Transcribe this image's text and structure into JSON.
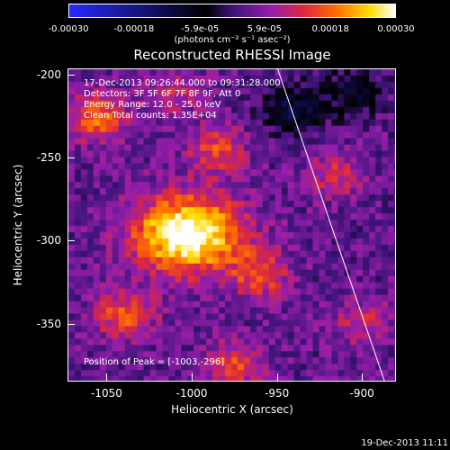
{
  "chart_data": {
    "type": "heatmap",
    "title": "Reconstructed RHESSI Image",
    "xlabel": "Heliocentric X (arcsec)",
    "ylabel": "Heliocentric Y (arcsec)",
    "xlim": [
      -1073,
      -880
    ],
    "ylim": [
      -385,
      -196
    ],
    "xticks": [
      "-1050",
      "-1000",
      "-950",
      "-900"
    ],
    "xtick_values": [
      -1050,
      -1000,
      -950,
      -900
    ],
    "yticks": [
      "-200",
      "-250",
      "-300",
      "-350"
    ],
    "ytick_values": [
      -200,
      -250,
      -300,
      -350
    ],
    "colorbar": {
      "ticks": [
        "-0.00030",
        "-0.00018",
        "-5.9e-05",
        "5.9e-05",
        "0.00018",
        "0.00030"
      ],
      "tick_values": [
        -0.0003,
        -0.00018,
        -5.9e-05,
        5.9e-05,
        0.00018,
        0.0003
      ],
      "units": "(photons cm⁻² s⁻¹ asec⁻²)",
      "range": [
        -0.0003,
        0.0003
      ]
    },
    "annotations": {
      "time_range": "17-Dec-2013 09:26:44.000 to 09:31:28.000",
      "detectors": "Detectors: 3F 5F 6F 7F 8F 9F, Att 0",
      "energy": "Energy Range: 12.0 - 25.0 keV",
      "clean": "Clean     Total counts: 1.35E+04",
      "peak": "Position of Peak = [-1003,-296]"
    },
    "peak_position": [
      -1003,
      -296
    ],
    "sources": [
      {
        "x": -1003,
        "y": -296,
        "value": 0.0003
      },
      {
        "x": -1055,
        "y": -225,
        "value": 0.00016
      },
      {
        "x": -985,
        "y": -245,
        "value": 0.00012
      },
      {
        "x": -1040,
        "y": -345,
        "value": 0.00014
      },
      {
        "x": -960,
        "y": -320,
        "value": 0.00013
      },
      {
        "x": -975,
        "y": -375,
        "value": 0.00012
      },
      {
        "x": -1010,
        "y": -210,
        "value": 8e-05
      },
      {
        "x": -915,
        "y": -260,
        "value": 9e-05
      },
      {
        "x": -900,
        "y": -350,
        "value": 8e-05
      },
      {
        "x": -940,
        "y": -220,
        "value": -0.00014
      },
      {
        "x": -905,
        "y": -210,
        "value": -0.0001
      }
    ],
    "limb_line": {
      "x": [
        -950,
        -887
      ],
      "y": [
        -196,
        -385
      ]
    }
  },
  "timestamp": "19-Dec-2013 11:11"
}
